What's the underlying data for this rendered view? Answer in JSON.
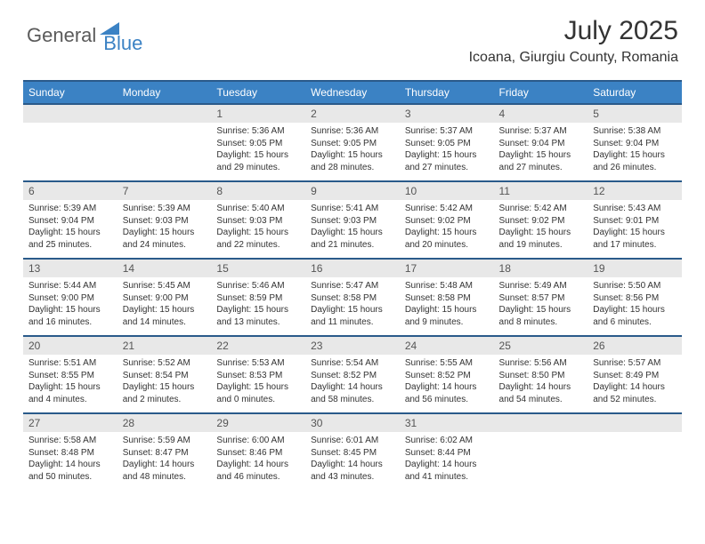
{
  "logo": {
    "part1": "General",
    "part2": "Blue"
  },
  "title": "July 2025",
  "location": "Icoana, Giurgiu County, Romania",
  "colors": {
    "header_bg": "#3b82c4",
    "header_border": "#2a5a8a",
    "daynum_bg": "#e8e8e8",
    "page_bg": "#ffffff",
    "text": "#333333",
    "logo_gray": "#5a5a5a",
    "logo_blue": "#3b82c4"
  },
  "weekdays": [
    "Sunday",
    "Monday",
    "Tuesday",
    "Wednesday",
    "Thursday",
    "Friday",
    "Saturday"
  ],
  "first_weekday_index": 2,
  "days": [
    {
      "n": 1,
      "sunrise": "5:36 AM",
      "sunset": "9:05 PM",
      "daylight": "15 hours and 29 minutes."
    },
    {
      "n": 2,
      "sunrise": "5:36 AM",
      "sunset": "9:05 PM",
      "daylight": "15 hours and 28 minutes."
    },
    {
      "n": 3,
      "sunrise": "5:37 AM",
      "sunset": "9:05 PM",
      "daylight": "15 hours and 27 minutes."
    },
    {
      "n": 4,
      "sunrise": "5:37 AM",
      "sunset": "9:04 PM",
      "daylight": "15 hours and 27 minutes."
    },
    {
      "n": 5,
      "sunrise": "5:38 AM",
      "sunset": "9:04 PM",
      "daylight": "15 hours and 26 minutes."
    },
    {
      "n": 6,
      "sunrise": "5:39 AM",
      "sunset": "9:04 PM",
      "daylight": "15 hours and 25 minutes."
    },
    {
      "n": 7,
      "sunrise": "5:39 AM",
      "sunset": "9:03 PM",
      "daylight": "15 hours and 24 minutes."
    },
    {
      "n": 8,
      "sunrise": "5:40 AM",
      "sunset": "9:03 PM",
      "daylight": "15 hours and 22 minutes."
    },
    {
      "n": 9,
      "sunrise": "5:41 AM",
      "sunset": "9:03 PM",
      "daylight": "15 hours and 21 minutes."
    },
    {
      "n": 10,
      "sunrise": "5:42 AM",
      "sunset": "9:02 PM",
      "daylight": "15 hours and 20 minutes."
    },
    {
      "n": 11,
      "sunrise": "5:42 AM",
      "sunset": "9:02 PM",
      "daylight": "15 hours and 19 minutes."
    },
    {
      "n": 12,
      "sunrise": "5:43 AM",
      "sunset": "9:01 PM",
      "daylight": "15 hours and 17 minutes."
    },
    {
      "n": 13,
      "sunrise": "5:44 AM",
      "sunset": "9:00 PM",
      "daylight": "15 hours and 16 minutes."
    },
    {
      "n": 14,
      "sunrise": "5:45 AM",
      "sunset": "9:00 PM",
      "daylight": "15 hours and 14 minutes."
    },
    {
      "n": 15,
      "sunrise": "5:46 AM",
      "sunset": "8:59 PM",
      "daylight": "15 hours and 13 minutes."
    },
    {
      "n": 16,
      "sunrise": "5:47 AM",
      "sunset": "8:58 PM",
      "daylight": "15 hours and 11 minutes."
    },
    {
      "n": 17,
      "sunrise": "5:48 AM",
      "sunset": "8:58 PM",
      "daylight": "15 hours and 9 minutes."
    },
    {
      "n": 18,
      "sunrise": "5:49 AM",
      "sunset": "8:57 PM",
      "daylight": "15 hours and 8 minutes."
    },
    {
      "n": 19,
      "sunrise": "5:50 AM",
      "sunset": "8:56 PM",
      "daylight": "15 hours and 6 minutes."
    },
    {
      "n": 20,
      "sunrise": "5:51 AM",
      "sunset": "8:55 PM",
      "daylight": "15 hours and 4 minutes."
    },
    {
      "n": 21,
      "sunrise": "5:52 AM",
      "sunset": "8:54 PM",
      "daylight": "15 hours and 2 minutes."
    },
    {
      "n": 22,
      "sunrise": "5:53 AM",
      "sunset": "8:53 PM",
      "daylight": "15 hours and 0 minutes."
    },
    {
      "n": 23,
      "sunrise": "5:54 AM",
      "sunset": "8:52 PM",
      "daylight": "14 hours and 58 minutes."
    },
    {
      "n": 24,
      "sunrise": "5:55 AM",
      "sunset": "8:52 PM",
      "daylight": "14 hours and 56 minutes."
    },
    {
      "n": 25,
      "sunrise": "5:56 AM",
      "sunset": "8:50 PM",
      "daylight": "14 hours and 54 minutes."
    },
    {
      "n": 26,
      "sunrise": "5:57 AM",
      "sunset": "8:49 PM",
      "daylight": "14 hours and 52 minutes."
    },
    {
      "n": 27,
      "sunrise": "5:58 AM",
      "sunset": "8:48 PM",
      "daylight": "14 hours and 50 minutes."
    },
    {
      "n": 28,
      "sunrise": "5:59 AM",
      "sunset": "8:47 PM",
      "daylight": "14 hours and 48 minutes."
    },
    {
      "n": 29,
      "sunrise": "6:00 AM",
      "sunset": "8:46 PM",
      "daylight": "14 hours and 46 minutes."
    },
    {
      "n": 30,
      "sunrise": "6:01 AM",
      "sunset": "8:45 PM",
      "daylight": "14 hours and 43 minutes."
    },
    {
      "n": 31,
      "sunrise": "6:02 AM",
      "sunset": "8:44 PM",
      "daylight": "14 hours and 41 minutes."
    }
  ],
  "labels": {
    "sunrise": "Sunrise:",
    "sunset": "Sunset:",
    "daylight": "Daylight:"
  }
}
